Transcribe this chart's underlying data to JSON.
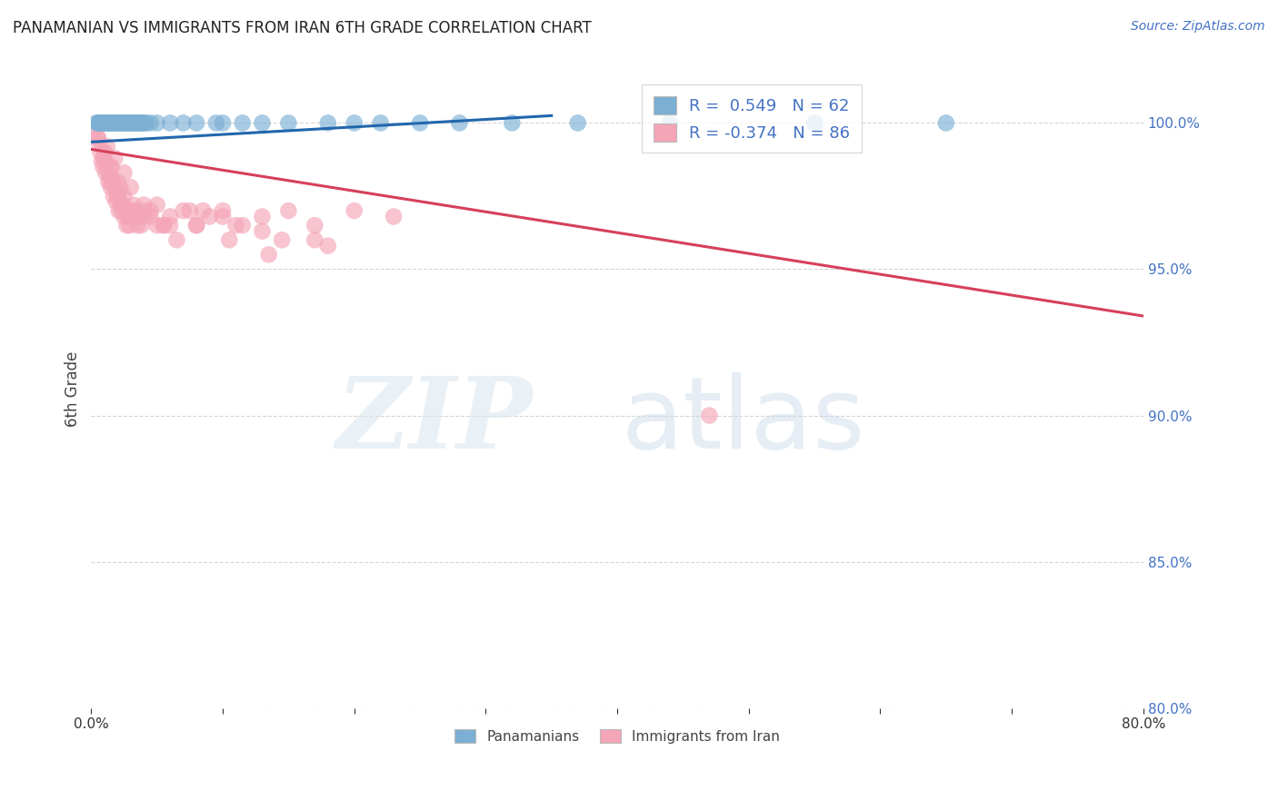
{
  "title": "PANAMANIAN VS IMMIGRANTS FROM IRAN 6TH GRADE CORRELATION CHART",
  "source": "Source: ZipAtlas.com",
  "ylabel": "6th Grade",
  "y_ticks": [
    80.0,
    85.0,
    90.0,
    95.0,
    100.0
  ],
  "x_min": 0.0,
  "x_max": 80.0,
  "y_min": 80.0,
  "y_max": 101.8,
  "blue_color": "#7bafd4",
  "blue_line_color": "#2166ac",
  "pink_color": "#f4a5b8",
  "pink_line_color": "#d6405a",
  "background_color": "#ffffff",
  "grid_color": "#cccccc",
  "blue_line_x0": 0.0,
  "blue_line_y0": 99.35,
  "blue_line_x1": 35.0,
  "blue_line_y1": 100.25,
  "pink_line_x0": 0.0,
  "pink_line_y0": 99.1,
  "pink_line_x1": 80.0,
  "pink_line_y1": 93.4,
  "pan_scatter_x": [
    0.4,
    0.5,
    0.6,
    0.7,
    0.8,
    0.9,
    1.0,
    1.1,
    1.2,
    1.3,
    1.4,
    1.5,
    1.6,
    1.7,
    1.8,
    1.9,
    2.0,
    2.1,
    2.2,
    2.3,
    2.4,
    2.5,
    2.6,
    2.7,
    2.8,
    2.9,
    3.0,
    3.1,
    3.2,
    3.3,
    3.4,
    3.5,
    3.6,
    3.7,
    3.8,
    3.9,
    4.0,
    4.2,
    4.5,
    5.0,
    6.0,
    7.0,
    8.0,
    9.5,
    10.0,
    11.5,
    13.0,
    15.0,
    18.0,
    20.0,
    22.0,
    25.0,
    28.0,
    32.0,
    37.0,
    44.0,
    55.0,
    65.0
  ],
  "pan_scatter_y": [
    100.0,
    100.0,
    100.0,
    100.0,
    100.0,
    100.0,
    100.0,
    100.0,
    100.0,
    100.0,
    100.0,
    100.0,
    100.0,
    100.0,
    100.0,
    100.0,
    100.0,
    100.0,
    100.0,
    100.0,
    100.0,
    100.0,
    100.0,
    100.0,
    100.0,
    100.0,
    100.0,
    100.0,
    100.0,
    100.0,
    100.0,
    100.0,
    100.0,
    100.0,
    100.0,
    100.0,
    100.0,
    100.0,
    100.0,
    100.0,
    100.0,
    100.0,
    100.0,
    100.0,
    100.0,
    100.0,
    100.0,
    100.0,
    100.0,
    100.0,
    100.0,
    100.0,
    100.0,
    100.0,
    100.0,
    100.0,
    100.0,
    100.0
  ],
  "iran_scatter_x": [
    0.3,
    0.5,
    0.6,
    0.7,
    0.8,
    0.9,
    1.0,
    1.1,
    1.2,
    1.3,
    1.4,
    1.5,
    1.6,
    1.7,
    1.8,
    1.9,
    2.0,
    2.1,
    2.2,
    2.3,
    2.4,
    2.5,
    2.6,
    2.7,
    2.8,
    2.9,
    3.0,
    3.2,
    3.4,
    3.6,
    3.8,
    4.0,
    4.5,
    5.0,
    5.5,
    6.0,
    7.0,
    8.0,
    9.0,
    10.0,
    11.5,
    13.0,
    15.0,
    17.0,
    20.0,
    23.0,
    1.2,
    1.8,
    2.5,
    3.0,
    4.0,
    5.5,
    7.5,
    10.0,
    13.0,
    17.0,
    1.0,
    1.5,
    2.0,
    2.8,
    3.5,
    4.5,
    6.0,
    8.5,
    11.0,
    14.5,
    1.0,
    1.5,
    2.0,
    2.5,
    3.0,
    4.0,
    5.0,
    6.5,
    8.0,
    10.5,
    13.5,
    18.0,
    0.5,
    1.0,
    1.5,
    2.2,
    47.0
  ],
  "iran_scatter_y": [
    99.8,
    99.5,
    99.3,
    99.0,
    98.7,
    98.5,
    98.8,
    98.3,
    98.5,
    98.0,
    98.2,
    97.8,
    98.0,
    97.5,
    97.8,
    97.3,
    97.5,
    97.0,
    97.3,
    97.0,
    97.2,
    96.8,
    97.0,
    96.5,
    96.8,
    96.5,
    96.8,
    97.2,
    97.0,
    96.8,
    96.5,
    97.0,
    96.8,
    97.2,
    96.5,
    96.8,
    97.0,
    96.5,
    96.8,
    97.0,
    96.5,
    96.8,
    97.0,
    96.5,
    97.0,
    96.8,
    99.2,
    98.8,
    98.3,
    97.8,
    97.2,
    96.5,
    97.0,
    96.8,
    96.3,
    96.0,
    98.8,
    98.0,
    97.5,
    97.0,
    96.5,
    97.0,
    96.5,
    97.0,
    96.5,
    96.0,
    99.0,
    98.5,
    98.0,
    97.5,
    97.0,
    96.8,
    96.5,
    96.0,
    96.5,
    96.0,
    95.5,
    95.8,
    99.5,
    99.0,
    98.5,
    97.8,
    90.0
  ]
}
